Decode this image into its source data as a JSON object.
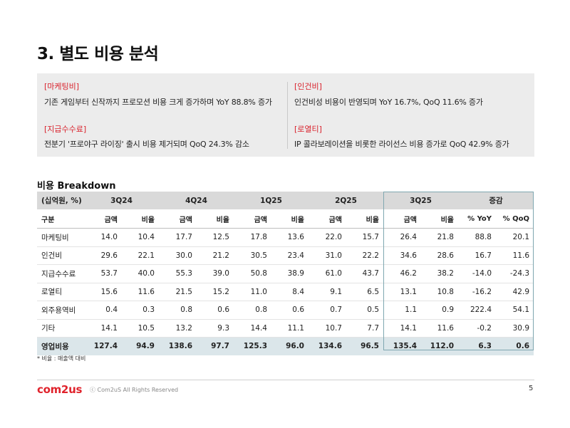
{
  "page": {
    "title": "3. 별도 비용 분석",
    "breakdown_title": "비용 Breakdown",
    "footnote": "* 비율 : 매출액 대비",
    "logo": "com2us",
    "copyright": "ⓒ Com2uS All Rights Reserved",
    "page_number": "5"
  },
  "summary": [
    {
      "tag": "[마케팅비]",
      "text": "기존 게임부터 신작까지 프로모션 비용 크게 증가하며 YoY 88.8% 증가"
    },
    {
      "tag": "[인건비]",
      "text": "인건비성 비용이 반영되며 YoY 16.7%, QoQ 11.6% 증가"
    },
    {
      "tag": "[지급수수료]",
      "text": "전분기 '프로야구 라이징' 출시 비용 제거되며 QoQ 24.3% 감소"
    },
    {
      "tag": "[로열티]",
      "text": "IP 콜라보레이션을 비롯한 라이선스 비용 증가로 QoQ 42.9% 증가"
    }
  ],
  "table": {
    "unit": "(십억원, %)",
    "periods": [
      "3Q24",
      "4Q24",
      "1Q25",
      "2Q25",
      "3Q25",
      "증감"
    ],
    "row_label_header": "구분",
    "sub_headers": [
      "금액",
      "비율",
      "금액",
      "비율",
      "금액",
      "비율",
      "금액",
      "비율",
      "금액",
      "비율",
      "% YoY",
      "% QoQ"
    ],
    "rows": [
      {
        "label": "마케팅비",
        "values": [
          "14.0",
          "10.4",
          "17.7",
          "12.5",
          "17.8",
          "13.6",
          "22.0",
          "15.7",
          "26.4",
          "21.8",
          "88.8",
          "20.1"
        ]
      },
      {
        "label": "인건비",
        "values": [
          "29.6",
          "22.1",
          "30.0",
          "21.2",
          "30.5",
          "23.4",
          "31.0",
          "22.2",
          "34.6",
          "28.6",
          "16.7",
          "11.6"
        ]
      },
      {
        "label": "지급수수료",
        "values": [
          "53.7",
          "40.0",
          "55.3",
          "39.0",
          "50.8",
          "38.9",
          "61.0",
          "43.7",
          "46.2",
          "38.2",
          "-14.0",
          "-24.3"
        ]
      },
      {
        "label": "로열티",
        "values": [
          "15.6",
          "11.6",
          "21.5",
          "15.2",
          "11.0",
          "8.4",
          "9.1",
          "6.5",
          "13.1",
          "10.8",
          "-16.2",
          "42.9"
        ]
      },
      {
        "label": "외주용역비",
        "values": [
          "0.4",
          "0.3",
          "0.8",
          "0.6",
          "0.8",
          "0.6",
          "0.7",
          "0.5",
          "1.1",
          "0.9",
          "222.4",
          "54.1"
        ]
      },
      {
        "label": "기타",
        "values": [
          "14.1",
          "10.5",
          "13.2",
          "9.3",
          "14.4",
          "11.1",
          "10.7",
          "7.7",
          "14.1",
          "11.6",
          "-0.2",
          "30.9"
        ]
      }
    ],
    "total": {
      "label": "영업비용",
      "values": [
        "127.4",
        "94.9",
        "138.6",
        "97.7",
        "125.3",
        "96.0",
        "134.6",
        "96.5",
        "135.4",
        "112.0",
        "6.3",
        "0.6"
      ]
    }
  },
  "colors": {
    "accent_red": "#d9232d",
    "highlight_teal": "#7fa7b0",
    "total_row_bg": "#dbe6ea"
  }
}
